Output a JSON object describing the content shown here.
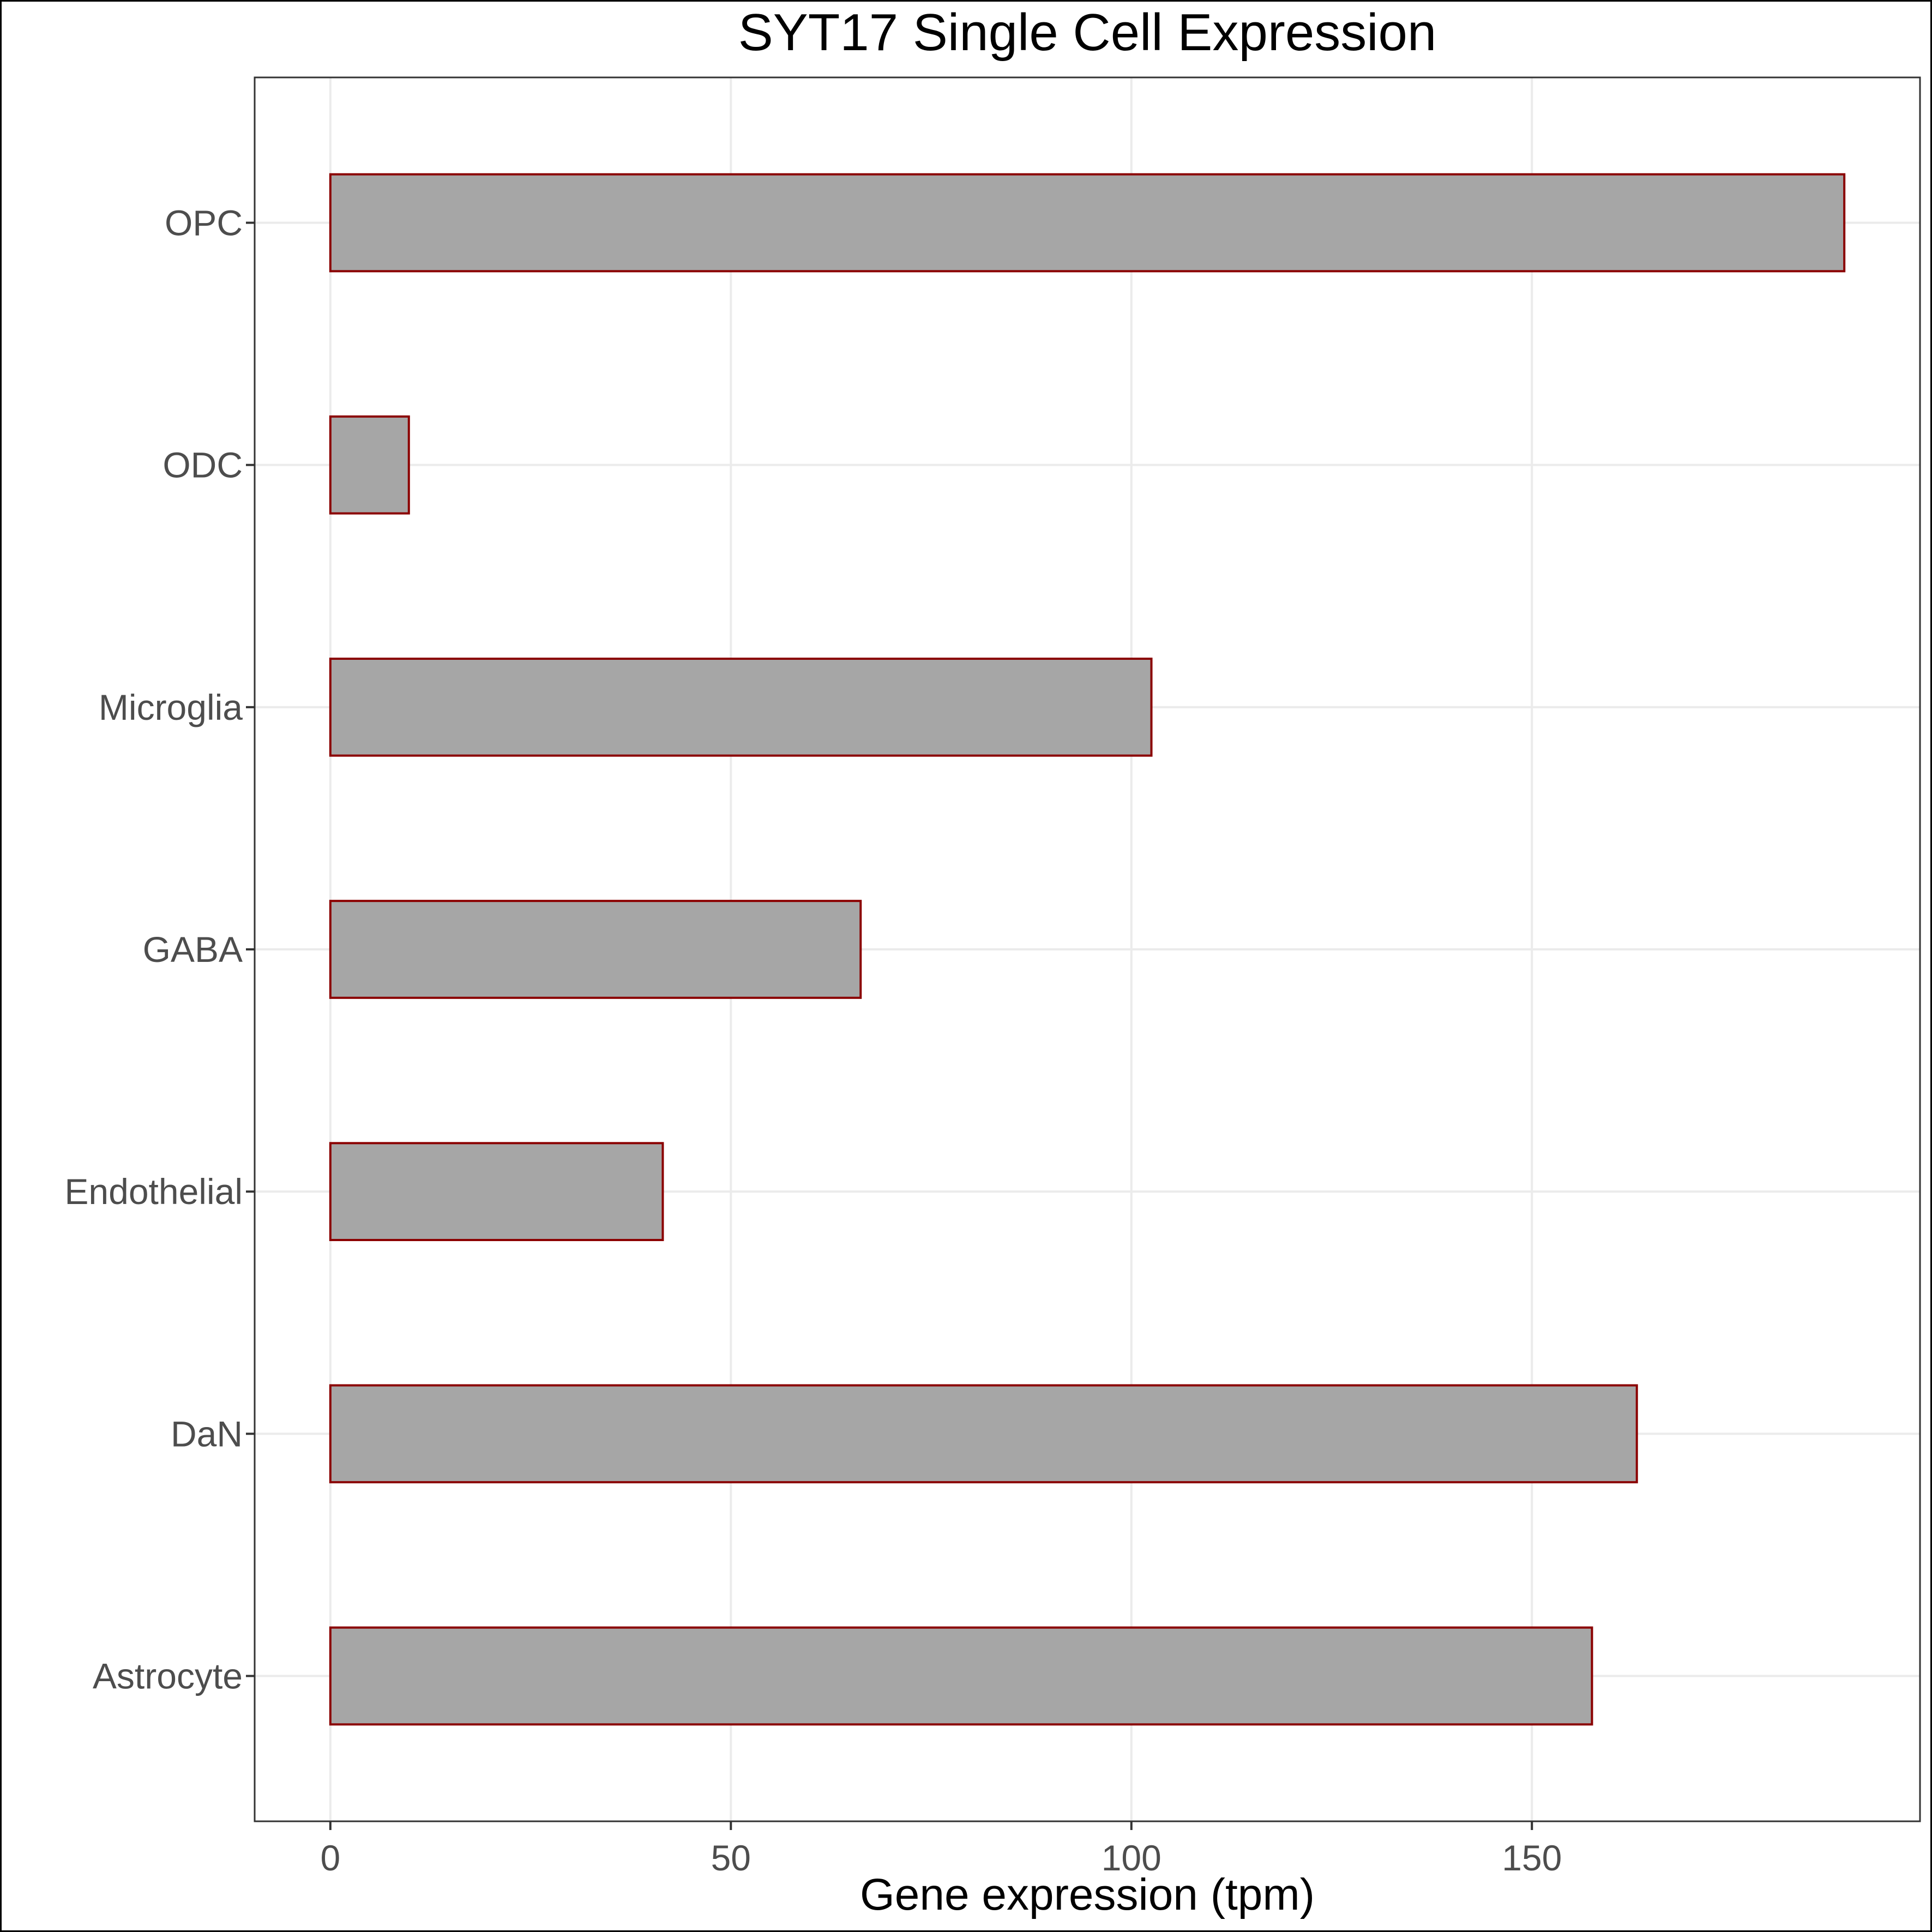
{
  "chart_data": {
    "type": "bar",
    "orientation": "horizontal",
    "title": "SYT17 Single Cell Expression",
    "xlabel": "Gene expression (tpm)",
    "ylabel": "",
    "categories": [
      "Astrocyte",
      "DaN",
      "Endothelial",
      "GABA",
      "Microglia",
      "ODC",
      "OPC"
    ],
    "values": [
      157.5,
      163.1,
      41.5,
      66.2,
      102.5,
      9.8,
      189.0
    ],
    "xlim": [
      -9.45,
      198.45
    ],
    "xticks": [
      0,
      50,
      100,
      150
    ],
    "xtick_labels": [
      "0",
      "50",
      "100",
      "150"
    ],
    "grid": true,
    "legend": "none",
    "colors": {
      "bar_fill": "#a6a6a6",
      "bar_border": "#8b0000"
    }
  }
}
